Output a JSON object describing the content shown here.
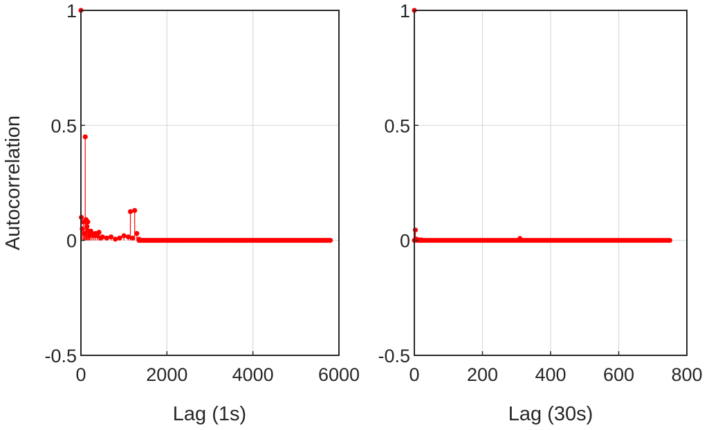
{
  "chart_data": [
    {
      "type": "scatter",
      "style": "stem",
      "xlabel": "Lag (1s)",
      "ylabel": "Autocorrelation",
      "xlim": [
        0,
        6000
      ],
      "ylim": [
        -0.5,
        1
      ],
      "xticks": [
        0,
        2000,
        4000,
        6000
      ],
      "yticks": [
        -0.5,
        0,
        0.5,
        1
      ],
      "xtick_labels": [
        "0",
        "2000",
        "4000",
        "6000"
      ],
      "ytick_labels": [
        "-0.5",
        "0",
        "0.5",
        "1"
      ],
      "grid": true,
      "color": "#ff0000",
      "series": [
        {
          "x": [
            0,
            10,
            30,
            60,
            80,
            100,
            120,
            140,
            160,
            180,
            200,
            230,
            260,
            300,
            340,
            380,
            420,
            460,
            500,
            600,
            700,
            800,
            900,
            1000,
            1100,
            1150,
            1200,
            1250,
            1300,
            1350
          ],
          "y": [
            1.0,
            0.1,
            0.05,
            0.08,
            0.03,
            0.45,
            0.09,
            0.06,
            0.08,
            0.04,
            0.02,
            0.04,
            0.03,
            0.02,
            0.03,
            0.02,
            0.035,
            0.01,
            0.015,
            0.01,
            0.015,
            0.005,
            0.01,
            0.02,
            0.015,
            0.125,
            0.01,
            0.13,
            0.03,
            0.005
          ],
          "tail": {
            "from": 1350,
            "to": 5800,
            "value": 0
          }
        }
      ]
    },
    {
      "type": "scatter",
      "style": "stem",
      "xlabel": "Lag (30s)",
      "ylabel": "",
      "xlim": [
        0,
        800
      ],
      "ylim": [
        -0.5,
        1
      ],
      "xticks": [
        0,
        200,
        400,
        600,
        800
      ],
      "yticks": [
        -0.5,
        0,
        0.5,
        1
      ],
      "xtick_labels": [
        "0",
        "200",
        "400",
        "600",
        "800"
      ],
      "ytick_labels": [
        "-0.5",
        "0",
        "0.5",
        "1"
      ],
      "grid": true,
      "color": "#ff0000",
      "series": [
        {
          "x": [
            0,
            3,
            6,
            10,
            20,
            310
          ],
          "y": [
            1.0,
            0.045,
            0.005,
            0.003,
            0.002,
            0.008
          ],
          "tail": {
            "from": 0,
            "to": 750,
            "value": 0
          }
        }
      ]
    }
  ]
}
